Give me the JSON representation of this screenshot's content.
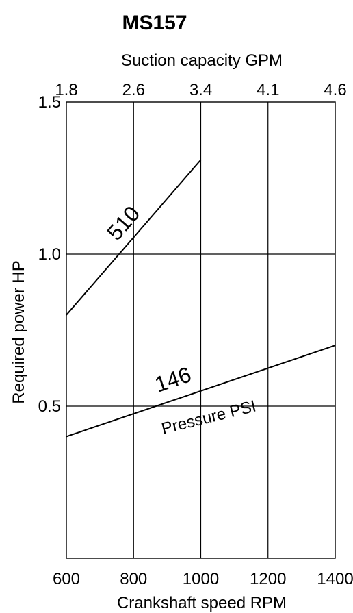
{
  "chart_data": {
    "type": "line",
    "title": "MS157",
    "xlabel": "Crankshaft speed RPM",
    "ylabel": "Required power  HP",
    "x2label": "Suction capacity GPM",
    "xlim": [
      600,
      1400
    ],
    "ylim": [
      0,
      1.5
    ],
    "x_ticks": [
      600,
      800,
      1000,
      1200,
      1400
    ],
    "x_tick_labels": [
      "600",
      "800",
      "1000",
      "1200",
      "1400"
    ],
    "x2_tick_labels": [
      "1.8",
      "2.6",
      "3.4",
      "4.1",
      "4.6"
    ],
    "y_ticks": [
      0.5,
      1.0,
      1.5
    ],
    "y_tick_labels": [
      "0.5",
      "1.0",
      "1.5"
    ],
    "grid": true,
    "annotation": "Pressure PSI",
    "series": [
      {
        "name": "510",
        "x": [
          600,
          1000
        ],
        "y": [
          0.8,
          1.31
        ]
      },
      {
        "name": "146",
        "x": [
          600,
          1400
        ],
        "y": [
          0.4,
          0.7
        ]
      }
    ]
  }
}
